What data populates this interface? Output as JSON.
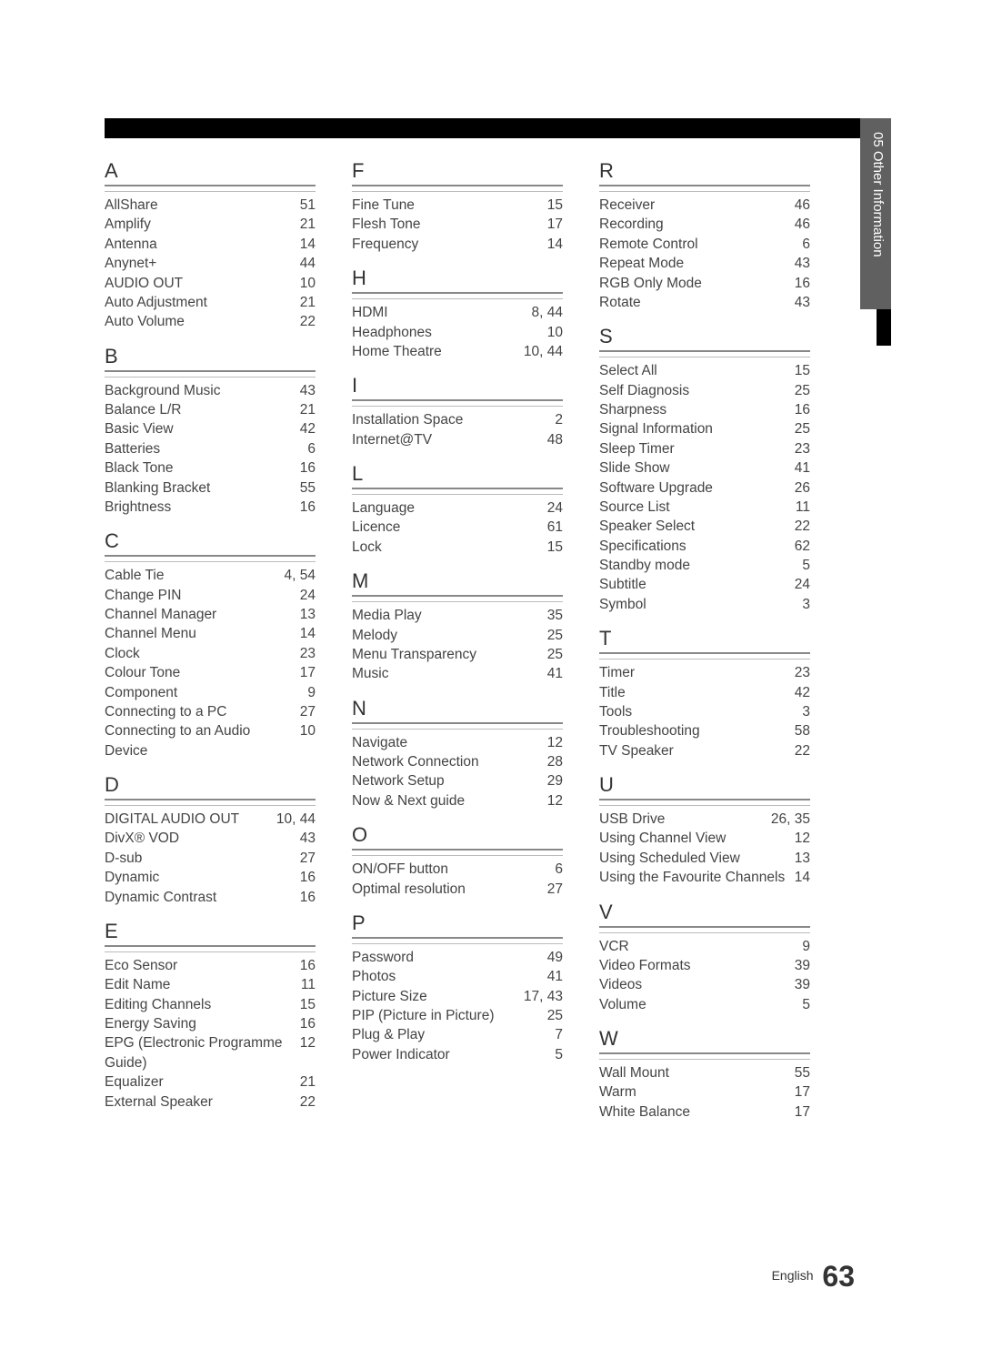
{
  "sideLabel": "05  Other Information",
  "footerLang": "English",
  "footerPage": "63",
  "columns": [
    [
      {
        "letter": "A",
        "entries": [
          {
            "label": "AllShare",
            "page": "51"
          },
          {
            "label": "Amplify",
            "page": "21"
          },
          {
            "label": "Antenna",
            "page": "14"
          },
          {
            "label": "Anynet+",
            "page": "44"
          },
          {
            "label": "AUDIO OUT",
            "page": "10"
          },
          {
            "label": "Auto Adjustment",
            "page": "21"
          },
          {
            "label": "Auto Volume",
            "page": "22"
          }
        ]
      },
      {
        "letter": "B",
        "entries": [
          {
            "label": "Background Music",
            "page": "43"
          },
          {
            "label": "Balance L/R",
            "page": "21"
          },
          {
            "label": "Basic View",
            "page": "42"
          },
          {
            "label": "Batteries",
            "page": "6"
          },
          {
            "label": "Black Tone",
            "page": "16"
          },
          {
            "label": "Blanking Bracket",
            "page": "55"
          },
          {
            "label": "Brightness",
            "page": "16"
          }
        ]
      },
      {
        "letter": "C",
        "entries": [
          {
            "label": "Cable Tie",
            "page": "4, 54"
          },
          {
            "label": "Change PIN",
            "page": "24"
          },
          {
            "label": "Channel Manager",
            "page": "13"
          },
          {
            "label": "Channel Menu",
            "page": "14"
          },
          {
            "label": "Clock",
            "page": "23"
          },
          {
            "label": "Colour Tone",
            "page": "17"
          },
          {
            "label": "Component",
            "page": "9"
          },
          {
            "label": "Connecting to a PC",
            "page": "27"
          },
          {
            "label": "Connecting to an Audio Device",
            "page": "10"
          }
        ]
      },
      {
        "letter": "D",
        "entries": [
          {
            "label": "DIGITAL AUDIO OUT",
            "page": "10, 44"
          },
          {
            "label": "DivX® VOD",
            "page": "43"
          },
          {
            "label": "D-sub",
            "page": "27"
          },
          {
            "label": "Dynamic",
            "page": "16"
          },
          {
            "label": "Dynamic Contrast",
            "page": "16"
          }
        ]
      },
      {
        "letter": "E",
        "entries": [
          {
            "label": "Eco Sensor",
            "page": "16"
          },
          {
            "label": "Edit Name",
            "page": "11"
          },
          {
            "label": "Editing Channels",
            "page": "15"
          },
          {
            "label": "Energy Saving",
            "page": "16"
          },
          {
            "label": "EPG (Electronic Programme Guide)",
            "page": "12"
          },
          {
            "label": "Equalizer",
            "page": "21"
          },
          {
            "label": "External Speaker",
            "page": "22"
          }
        ]
      }
    ],
    [
      {
        "letter": "F",
        "entries": [
          {
            "label": "Fine Tune",
            "page": "15"
          },
          {
            "label": "Flesh Tone",
            "page": "17"
          },
          {
            "label": "Frequency",
            "page": "14"
          }
        ]
      },
      {
        "letter": "H",
        "entries": [
          {
            "label": "HDMI",
            "page": "8, 44"
          },
          {
            "label": "Headphones",
            "page": "10"
          },
          {
            "label": "Home Theatre",
            "page": "10, 44"
          }
        ]
      },
      {
        "letter": "I",
        "entries": [
          {
            "label": "Installation Space",
            "page": "2"
          },
          {
            "label": "Internet@TV",
            "page": "48"
          }
        ]
      },
      {
        "letter": "L",
        "entries": [
          {
            "label": "Language",
            "page": "24"
          },
          {
            "label": "Licence",
            "page": "61"
          },
          {
            "label": "Lock",
            "page": "15"
          }
        ]
      },
      {
        "letter": "M",
        "entries": [
          {
            "label": "Media Play",
            "page": "35"
          },
          {
            "label": "Melody",
            "page": "25"
          },
          {
            "label": "Menu Transparency",
            "page": "25"
          },
          {
            "label": "Music",
            "page": "41"
          }
        ]
      },
      {
        "letter": "N",
        "entries": [
          {
            "label": "Navigate",
            "page": "12"
          },
          {
            "label": "Network Connection",
            "page": "28"
          },
          {
            "label": "Network Setup",
            "page": "29"
          },
          {
            "label": "Now & Next guide",
            "page": "12"
          }
        ]
      },
      {
        "letter": "O",
        "entries": [
          {
            "label": "ON/OFF button",
            "page": "6"
          },
          {
            "label": "Optimal resolution",
            "page": "27"
          }
        ]
      },
      {
        "letter": "P",
        "entries": [
          {
            "label": "Password",
            "page": "49"
          },
          {
            "label": "Photos",
            "page": "41"
          },
          {
            "label": "Picture Size",
            "page": "17, 43"
          },
          {
            "label": "PIP (Picture in Picture)",
            "page": "25"
          },
          {
            "label": "Plug & Play",
            "page": "7"
          },
          {
            "label": "Power Indicator",
            "page": "5"
          }
        ]
      }
    ],
    [
      {
        "letter": "R",
        "entries": [
          {
            "label": "Receiver",
            "page": "46"
          },
          {
            "label": "Recording",
            "page": "46"
          },
          {
            "label": "Remote Control",
            "page": "6"
          },
          {
            "label": "Repeat Mode",
            "page": "43"
          },
          {
            "label": "RGB Only Mode",
            "page": "16"
          },
          {
            "label": "Rotate",
            "page": "43"
          }
        ]
      },
      {
        "letter": "S",
        "entries": [
          {
            "label": "Select All",
            "page": "15"
          },
          {
            "label": "Self Diagnosis",
            "page": "25"
          },
          {
            "label": "Sharpness",
            "page": "16"
          },
          {
            "label": "Signal Information",
            "page": "25"
          },
          {
            "label": "Sleep Timer",
            "page": "23"
          },
          {
            "label": "Slide Show",
            "page": "41"
          },
          {
            "label": "Software Upgrade",
            "page": "26"
          },
          {
            "label": "Source List",
            "page": "11"
          },
          {
            "label": "Speaker Select",
            "page": "22"
          },
          {
            "label": "Specifications",
            "page": "62"
          },
          {
            "label": "Standby mode",
            "page": "5"
          },
          {
            "label": "Subtitle",
            "page": "24"
          },
          {
            "label": "Symbol",
            "page": "3"
          }
        ]
      },
      {
        "letter": "T",
        "entries": [
          {
            "label": "Timer",
            "page": "23"
          },
          {
            "label": "Title",
            "page": "42"
          },
          {
            "label": "Tools",
            "page": "3"
          },
          {
            "label": "Troubleshooting",
            "page": "58"
          },
          {
            "label": "TV Speaker",
            "page": "22"
          }
        ]
      },
      {
        "letter": "U",
        "entries": [
          {
            "label": "USB Drive",
            "page": "26, 35"
          },
          {
            "label": "Using Channel View",
            "page": "12"
          },
          {
            "label": "Using Scheduled View",
            "page": "13"
          },
          {
            "label": "Using the Favourite Channels",
            "page": "14"
          }
        ]
      },
      {
        "letter": "V",
        "entries": [
          {
            "label": "VCR",
            "page": "9"
          },
          {
            "label": "Video Formats",
            "page": "39"
          },
          {
            "label": "Videos",
            "page": "39"
          },
          {
            "label": "Volume",
            "page": "5"
          }
        ]
      },
      {
        "letter": "W",
        "entries": [
          {
            "label": "Wall Mount",
            "page": "55"
          },
          {
            "label": "Warm",
            "page": "17"
          },
          {
            "label": "White Balance",
            "page": "17"
          }
        ]
      }
    ]
  ]
}
